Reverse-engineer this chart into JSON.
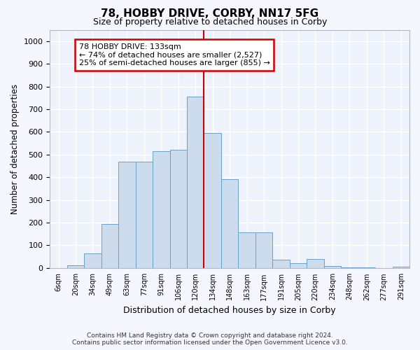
{
  "title": "78, HOBBY DRIVE, CORBY, NN17 5FG",
  "subtitle": "Size of property relative to detached houses in Corby",
  "xlabel": "Distribution of detached houses by size in Corby",
  "ylabel": "Number of detached properties",
  "bar_color": "#ccdcec",
  "bar_edge_color": "#6aa0c8",
  "background_color": "#eef2fa",
  "grid_color": "#ffffff",
  "annotation_line_color": "#cc0000",
  "annotation_box_edge_color": "#cc0000",
  "annotation_text_line1": "78 HOBBY DRIVE: 133sqm",
  "annotation_text_line2": "← 74% of detached houses are smaller (2,527)",
  "annotation_text_line3": "25% of semi-detached houses are larger (855) →",
  "categories": [
    "6sqm",
    "20sqm",
    "34sqm",
    "49sqm",
    "63sqm",
    "77sqm",
    "91sqm",
    "106sqm",
    "120sqm",
    "134sqm",
    "148sqm",
    "163sqm",
    "177sqm",
    "191sqm",
    "205sqm",
    "220sqm",
    "234sqm",
    "248sqm",
    "262sqm",
    "277sqm",
    "291sqm"
  ],
  "values": [
    0,
    12,
    65,
    195,
    470,
    470,
    515,
    520,
    755,
    595,
    390,
    158,
    158,
    38,
    22,
    40,
    10,
    4,
    2,
    1,
    7
  ],
  "ylim": [
    0,
    1050
  ],
  "yticks": [
    0,
    100,
    200,
    300,
    400,
    500,
    600,
    700,
    800,
    900,
    1000
  ],
  "line_index": 9,
  "footer_line1": "Contains HM Land Registry data © Crown copyright and database right 2024.",
  "footer_line2": "Contains public sector information licensed under the Open Government Licence v3.0."
}
